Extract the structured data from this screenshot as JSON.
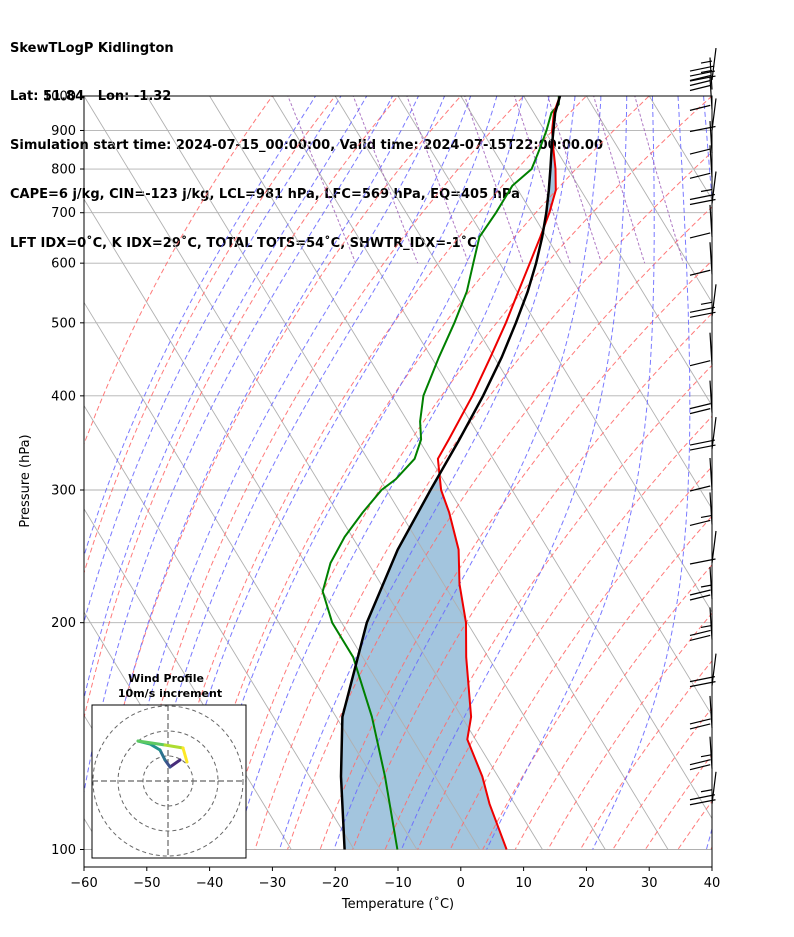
{
  "title": {
    "line1": "SkewTLogP Kidlington",
    "line2": "Lat: 51.84   Lon: -1.32",
    "line3": "Simulation start time: 2024-07-15_00:00:00, Valid time: 2024-07-15T22:00:00.00",
    "line4": "CAPE=6 j/kg, CIN=-123 j/kg, LCL=981 hPa, LFC=569 hPa, EQ=405 hPa",
    "line5": "LFT IDX=0˚C, K IDX=29˚C, TOTAL TOTS=54˚C, SHWTR_IDX=-1˚C"
  },
  "colors": {
    "temperature": "#ee0000",
    "dewpoint": "#008000",
    "parcel": "#000000",
    "cape_fill": "#a3c5de",
    "dry_adiabat": "#ff6b6b",
    "moist_adiabat": "#6a6aff",
    "mixing_ratio": "#9b59b6",
    "isotherm": "#b0b0b0"
  },
  "chart_data": {
    "type": "skewt",
    "xlabel": "Temperature (˚C)",
    "ylabel": "Pressure (hPa)",
    "xlim": [
      -60,
      40
    ],
    "ylim": [
      1050,
      100
    ],
    "xticks": [
      "−60",
      "−50",
      "−40",
      "−30",
      "−20",
      "−10",
      "0",
      "10",
      "20",
      "30",
      "40"
    ],
    "yticks": [
      "100",
      "200",
      "300",
      "400",
      "500",
      "600",
      "700",
      "800",
      "900",
      "1000"
    ],
    "ytick_values": [
      100,
      200,
      300,
      400,
      500,
      600,
      700,
      800,
      900,
      1000
    ],
    "temperature": [
      [
        1000,
        15.8
      ],
      [
        975,
        14.5
      ],
      [
        950,
        13.2
      ],
      [
        900,
        11.2
      ],
      [
        850,
        9.6
      ],
      [
        800,
        8.0
      ],
      [
        750,
        6.0
      ],
      [
        700,
        2.8
      ],
      [
        650,
        -1.0
      ],
      [
        600,
        -5.2
      ],
      [
        550,
        -9.8
      ],
      [
        500,
        -14.8
      ],
      [
        450,
        -20.6
      ],
      [
        400,
        -27.2
      ],
      [
        350,
        -35.2
      ],
      [
        330,
        -38.8
      ],
      [
        300,
        -41.3
      ],
      [
        280,
        -42.2
      ],
      [
        250,
        -44.3
      ],
      [
        225,
        -47.5
      ],
      [
        200,
        -50.2
      ],
      [
        180,
        -53.5
      ],
      [
        150,
        -58.5
      ],
      [
        140,
        -61.3
      ],
      [
        125,
        -62.5
      ],
      [
        115,
        -64
      ],
      [
        100,
        -65.7
      ]
    ],
    "dewpoint": [
      [
        1000,
        15.6
      ],
      [
        975,
        14.8
      ],
      [
        950,
        12.8
      ],
      [
        900,
        10.3
      ],
      [
        850,
        7.4
      ],
      [
        800,
        4.2
      ],
      [
        760,
        -0.5
      ],
      [
        700,
        -5.7
      ],
      [
        650,
        -10.7
      ],
      [
        600,
        -14.2
      ],
      [
        550,
        -18
      ],
      [
        500,
        -23
      ],
      [
        450,
        -28.8
      ],
      [
        400,
        -35
      ],
      [
        370,
        -38
      ],
      [
        350,
        -39.6
      ],
      [
        330,
        -42.5
      ],
      [
        310,
        -47.5
      ],
      [
        300,
        -50.8
      ],
      [
        280,
        -56
      ],
      [
        260,
        -61.2
      ],
      [
        240,
        -66
      ],
      [
        220,
        -70
      ],
      [
        200,
        -71.5
      ],
      [
        180,
        -71.5
      ],
      [
        150,
        -74.3
      ],
      [
        125,
        -78
      ],
      [
        100,
        -83.1
      ]
    ],
    "parcel": [
      [
        1000,
        15.8
      ],
      [
        950,
        13.4
      ],
      [
        900,
        11.4
      ],
      [
        850,
        9.3
      ],
      [
        800,
        7.2
      ],
      [
        750,
        4.9
      ],
      [
        700,
        2.3
      ],
      [
        650,
        -0.7
      ],
      [
        600,
        -4.2
      ],
      [
        550,
        -8.3
      ],
      [
        500,
        -13.2
      ],
      [
        450,
        -18.8
      ],
      [
        400,
        -25.5
      ],
      [
        350,
        -33.5
      ],
      [
        300,
        -43
      ],
      [
        250,
        -54
      ],
      [
        200,
        -66
      ],
      [
        150,
        -79
      ],
      [
        125,
        -85
      ],
      [
        100,
        -91.5
      ]
    ],
    "cape_region": "between parcel and temperature curves",
    "wind_barbs": [
      {
        "pressure": 1050,
        "speed_kt": 25
      },
      {
        "pressure": 1020,
        "speed_kt": 25
      },
      {
        "pressure": 960,
        "speed_kt": 10
      },
      {
        "pressure": 900,
        "speed_kt": 10
      },
      {
        "pressure": 840,
        "speed_kt": 10
      },
      {
        "pressure": 780,
        "speed_kt": 10
      },
      {
        "pressure": 720,
        "speed_kt": 15
      },
      {
        "pressure": 650,
        "speed_kt": 10
      },
      {
        "pressure": 580,
        "speed_kt": 10
      },
      {
        "pressure": 510,
        "speed_kt": 15
      },
      {
        "pressure": 440,
        "speed_kt": 10
      },
      {
        "pressure": 380,
        "speed_kt": 20
      },
      {
        "pressure": 340,
        "speed_kt": 20
      },
      {
        "pressure": 300,
        "speed_kt": 10
      },
      {
        "pressure": 270,
        "speed_kt": 5
      },
      {
        "pressure": 240,
        "speed_kt": 10
      },
      {
        "pressure": 215,
        "speed_kt": 15
      },
      {
        "pressure": 190,
        "speed_kt": 15
      },
      {
        "pressure": 165,
        "speed_kt": 20
      },
      {
        "pressure": 145,
        "speed_kt": 20
      },
      {
        "pressure": 128,
        "speed_kt": 15
      },
      {
        "pressure": 115,
        "speed_kt": 15
      }
    ],
    "inset": {
      "title": "Wind Profile",
      "subtitle": "10m/s increment",
      "rings": 3
    }
  }
}
